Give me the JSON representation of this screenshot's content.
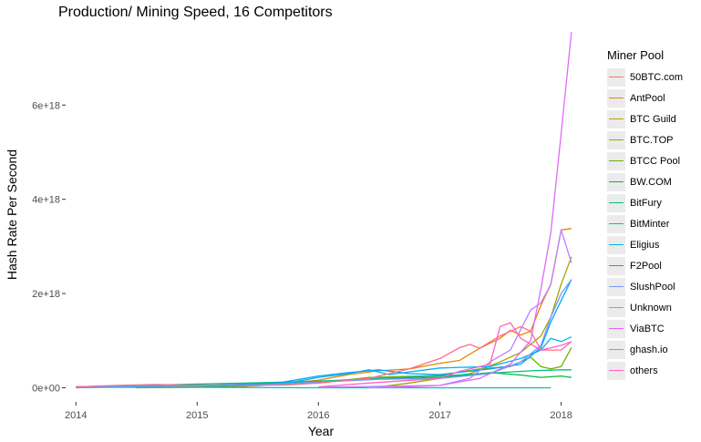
{
  "chart_data": {
    "type": "line",
    "title": "Production/ Mining Speed, 16 Competitors",
    "xlabel": "Year",
    "ylabel": "Hash Rate Per Second",
    "xlim": [
      "2013-12-01",
      "2018-02-15"
    ],
    "ylim": [
      -3e+17,
      7.65e+18
    ],
    "x_ticks": [
      "2014",
      "2015",
      "2016",
      "2017",
      "2018"
    ],
    "x_tick_dates": [
      "2014-01-01",
      "2015-01-01",
      "2016-01-01",
      "2017-01-01",
      "2018-01-01"
    ],
    "y_ticks": [
      0,
      2e+18,
      4e+18,
      6e+18
    ],
    "y_tick_labels": [
      "0e+00",
      "2e+18",
      "4e+18",
      "6e+18"
    ],
    "grid": false,
    "background": "#ffffff",
    "legend": {
      "title": "Miner Pool",
      "placement": "right"
    },
    "series": [
      {
        "name": "50BTC.com",
        "color": "#F8766D",
        "points": [
          [
            "2014-01-01",
            0
          ],
          [
            "2014-06-01",
            2e+16
          ],
          [
            "2014-10-01",
            3e+16
          ],
          [
            "2015-03-01",
            2e+16
          ],
          [
            "2015-06-01",
            1e+16
          ]
        ]
      },
      {
        "name": "AntPool",
        "color": "#E58700",
        "points": [
          [
            "2014-07-01",
            0
          ],
          [
            "2015-01-01",
            1e+16
          ],
          [
            "2015-07-01",
            4e+16
          ],
          [
            "2016-01-01",
            1.6e+17
          ],
          [
            "2016-04-01",
            2.8e+17
          ],
          [
            "2016-07-01",
            3.6e+17
          ],
          [
            "2016-10-01",
            4e+17
          ],
          [
            "2017-01-01",
            5.2e+17
          ],
          [
            "2017-03-01",
            5.8e+17
          ],
          [
            "2017-05-01",
            8.4e+17
          ],
          [
            "2017-07-01",
            1.05e+18
          ],
          [
            "2017-08-01",
            1.22e+18
          ],
          [
            "2017-09-01",
            1.12e+18
          ],
          [
            "2017-10-01",
            1.2e+18
          ],
          [
            "2017-11-01",
            1.75e+18
          ],
          [
            "2017-12-01",
            2.2e+18
          ],
          [
            "2018-01-01",
            3.35e+18
          ],
          [
            "2018-02-01",
            3.38e+18
          ]
        ]
      },
      {
        "name": "BTC Guild",
        "color": "#C99800",
        "points": [
          [
            "2014-01-01",
            2e+16
          ],
          [
            "2014-05-01",
            4e+16
          ],
          [
            "2014-09-01",
            6e+16
          ],
          [
            "2015-01-01",
            4e+16
          ],
          [
            "2015-06-01",
            2e+16
          ]
        ]
      },
      {
        "name": "BTC.TOP",
        "color": "#A3A500",
        "points": [
          [
            "2016-07-01",
            2e+16
          ],
          [
            "2016-10-01",
            1e+17
          ],
          [
            "2017-01-01",
            2e+17
          ],
          [
            "2017-04-01",
            3e+17
          ],
          [
            "2017-07-01",
            5.5e+17
          ],
          [
            "2017-09-01",
            7.5e+17
          ],
          [
            "2017-11-01",
            1.1e+18
          ],
          [
            "2017-12-01",
            1.5e+18
          ],
          [
            "2018-01-01",
            2.2e+18
          ],
          [
            "2018-02-01",
            2.78e+18
          ]
        ]
      },
      {
        "name": "BTCC Pool",
        "color": "#6BB100",
        "points": [
          [
            "2014-01-01",
            1e+16
          ],
          [
            "2014-10-01",
            4e+16
          ],
          [
            "2015-06-01",
            6e+16
          ],
          [
            "2016-01-01",
            1e+17
          ],
          [
            "2016-06-01",
            2.2e+17
          ],
          [
            "2017-01-01",
            2.6e+17
          ],
          [
            "2017-05-01",
            4e+17
          ],
          [
            "2017-08-01",
            4.5e+17
          ],
          [
            "2017-10-01",
            6.5e+17
          ],
          [
            "2017-11-01",
            4.5e+17
          ],
          [
            "2017-12-01",
            4e+17
          ],
          [
            "2018-01-01",
            4.5e+17
          ],
          [
            "2018-02-01",
            8.5e+17
          ]
        ]
      },
      {
        "name": "BW.COM",
        "color": "#00BA38",
        "points": [
          [
            "2015-01-01",
            1e+16
          ],
          [
            "2015-06-01",
            5e+16
          ],
          [
            "2016-01-01",
            1.2e+17
          ],
          [
            "2016-06-01",
            1.8e+17
          ],
          [
            "2017-01-01",
            2.2e+17
          ],
          [
            "2017-06-01",
            3.2e+17
          ],
          [
            "2017-09-01",
            2.7e+17
          ],
          [
            "2017-11-01",
            2.2e+17
          ],
          [
            "2018-01-01",
            2.5e+17
          ],
          [
            "2018-02-01",
            2.2e+17
          ]
        ]
      },
      {
        "name": "BitFury",
        "color": "#00BF7D",
        "points": [
          [
            "2014-01-01",
            1e+16
          ],
          [
            "2014-06-01",
            4e+16
          ],
          [
            "2015-01-01",
            8e+16
          ],
          [
            "2015-06-01",
            1e+17
          ],
          [
            "2016-01-01",
            1.4e+17
          ],
          [
            "2016-07-01",
            2e+17
          ],
          [
            "2017-01-01",
            2.5e+17
          ],
          [
            "2017-07-01",
            3.2e+17
          ],
          [
            "2017-10-01",
            3.6e+17
          ],
          [
            "2018-01-01",
            3.8e+17
          ],
          [
            "2018-02-01",
            3.8e+17
          ]
        ]
      },
      {
        "name": "BitMinter",
        "color": "#00C0B8",
        "points": [
          [
            "2014-01-01",
            1e+16
          ],
          [
            "2015-01-01",
            1e+16
          ],
          [
            "2016-01-01",
            0.0
          ],
          [
            "2017-01-01",
            0.0
          ],
          [
            "2017-06-01",
            0.0
          ],
          [
            "2017-08-01",
            0.0
          ],
          [
            "2017-12-01",
            0.0
          ]
        ]
      },
      {
        "name": "Eligius",
        "color": "#00B4EF",
        "points": [
          [
            "2014-01-01",
            2e+16
          ],
          [
            "2014-08-01",
            5e+16
          ],
          [
            "2015-01-01",
            5e+16
          ],
          [
            "2015-06-01",
            6e+16
          ],
          [
            "2015-10-01",
            1e+17
          ],
          [
            "2016-01-01",
            2.2e+17
          ],
          [
            "2016-04-01",
            3e+17
          ],
          [
            "2016-06-01",
            3.8e+17
          ],
          [
            "2016-08-01",
            2.8e+17
          ],
          [
            "2017-01-01",
            4.2e+17
          ],
          [
            "2017-06-01",
            4.5e+17
          ],
          [
            "2017-09-01",
            6.2e+17
          ],
          [
            "2017-11-01",
            8e+17
          ],
          [
            "2017-12-01",
            1.05e+18
          ],
          [
            "2018-01-01",
            9.8e+17
          ],
          [
            "2018-02-01",
            1.08e+18
          ]
        ]
      },
      {
        "name": "F2Pool",
        "color": "#00A5FF",
        "points": [
          [
            "2014-01-01",
            2e+16
          ],
          [
            "2014-08-01",
            5e+16
          ],
          [
            "2015-03-01",
            6e+16
          ],
          [
            "2015-09-01",
            1e+17
          ],
          [
            "2016-01-01",
            2.5e+17
          ],
          [
            "2016-04-01",
            3.2e+17
          ],
          [
            "2016-07-01",
            3.8e+17
          ],
          [
            "2016-10-01",
            3e+17
          ],
          [
            "2017-01-01",
            2.8e+17
          ],
          [
            "2017-06-01",
            4e+17
          ],
          [
            "2017-09-01",
            5e+17
          ],
          [
            "2017-11-01",
            8.5e+17
          ],
          [
            "2017-12-01",
            1.4e+18
          ],
          [
            "2018-01-01",
            1.85e+18
          ],
          [
            "2018-02-01",
            2.3e+18
          ]
        ]
      },
      {
        "name": "SlushPool",
        "color": "#7997FF",
        "points": [
          [
            "2014-01-01",
            2e+16
          ],
          [
            "2014-10-01",
            4e+16
          ],
          [
            "2015-06-01",
            5e+16
          ],
          [
            "2016-01-01",
            1.2e+17
          ],
          [
            "2016-07-01",
            1.8e+17
          ],
          [
            "2017-01-01",
            2e+17
          ],
          [
            "2017-06-01",
            3e+17
          ],
          [
            "2017-09-01",
            5.5e+17
          ],
          [
            "2017-11-01",
            9e+17
          ],
          [
            "2017-12-01",
            1.5e+18
          ],
          [
            "2018-01-01",
            2e+18
          ],
          [
            "2018-02-01",
            2.3e+18
          ]
        ]
      },
      {
        "name": "Unknown",
        "color": "#BB81FF",
        "points": [
          [
            "2016-01-01",
            1e+16
          ],
          [
            "2016-07-01",
            3e+16
          ],
          [
            "2017-01-01",
            5e+16
          ],
          [
            "2017-04-01",
            2e+17
          ],
          [
            "2017-06-01",
            5.5e+17
          ],
          [
            "2017-08-01",
            8e+17
          ],
          [
            "2017-10-01",
            1.65e+18
          ],
          [
            "2017-11-01",
            1.8e+18
          ],
          [
            "2017-12-01",
            2.2e+18
          ],
          [
            "2018-01-01",
            3.35e+18
          ],
          [
            "2018-02-01",
            2.65e+18
          ]
        ]
      },
      {
        "name": "ViaBTC",
        "color": "#E16AF8",
        "points": [
          [
            "2016-06-01",
            0.0
          ],
          [
            "2016-10-01",
            2e+16
          ],
          [
            "2017-01-01",
            5e+16
          ],
          [
            "2017-05-01",
            2e+17
          ],
          [
            "2017-08-01",
            5e+17
          ],
          [
            "2017-10-01",
            1e+18
          ],
          [
            "2017-11-01",
            2.1e+18
          ],
          [
            "2017-12-01",
            3.3e+18
          ],
          [
            "2018-01-01",
            5.4e+18
          ],
          [
            "2018-02-01",
            7.55e+18
          ]
        ]
      },
      {
        "name": "ghash.io",
        "color": "#FF6C91",
        "points": [
          [
            "2014-01-01",
            2e+16
          ],
          [
            "2014-05-01",
            5e+16
          ],
          [
            "2014-09-01",
            7e+16
          ],
          [
            "2015-01-01",
            5e+16
          ],
          [
            "2015-06-01",
            5e+16
          ],
          [
            "2015-10-01",
            6e+16
          ],
          [
            "2016-01-01",
            1e+17
          ],
          [
            "2016-06-01",
            2e+17
          ],
          [
            "2016-10-01",
            4e+17
          ],
          [
            "2017-01-01",
            6.2e+17
          ],
          [
            "2017-03-01",
            8.5e+17
          ],
          [
            "2017-04-01",
            9.2e+17
          ],
          [
            "2017-05-01",
            8.4e+17
          ],
          [
            "2017-07-01",
            1.1e+18
          ],
          [
            "2017-09-01",
            1.3e+18
          ],
          [
            "2017-10-01",
            1.2e+18
          ],
          [
            "2017-11-01",
            8e+17
          ],
          [
            "2018-01-01",
            8e+17
          ],
          [
            "2018-02-01",
            9.8e+17
          ]
        ]
      },
      {
        "name": "others",
        "color": "#FF61C3",
        "points": [
          [
            "2016-01-01",
            2e+16
          ],
          [
            "2016-06-01",
            1e+17
          ],
          [
            "2017-01-01",
            2e+17
          ],
          [
            "2017-03-01",
            3.5e+17
          ],
          [
            "2017-06-01",
            5e+17
          ],
          [
            "2017-07-01",
            1.3e+18
          ],
          [
            "2017-08-01",
            1.38e+18
          ],
          [
            "2017-09-01",
            1.05e+18
          ],
          [
            "2017-11-01",
            8e+17
          ],
          [
            "2018-01-01",
            9e+17
          ],
          [
            "2018-02-01",
            9.8e+17
          ]
        ]
      }
    ]
  }
}
